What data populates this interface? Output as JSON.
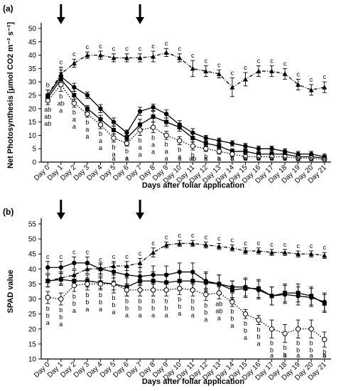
{
  "chart_data": [
    {
      "type": "line",
      "panel_label": "(a)",
      "xlabel": "Days after foliar application",
      "ylabel": "Net Photosynthesis [μmol CO2 m⁻² s⁻¹]",
      "ylim": [
        0,
        50
      ],
      "yticks": [
        0,
        5,
        10,
        15,
        20,
        25,
        30,
        35,
        40,
        45,
        50
      ],
      "categories": [
        "Day 0",
        "Day 1",
        "Day 2",
        "Day 3",
        "Day 4",
        "Day 5",
        "Day 6",
        "Day 7",
        "Day 8",
        "Day 9",
        "Day 10",
        "Day 11",
        "Day 12",
        "Day 13",
        "Day 14",
        "Day 15",
        "Day 16",
        "Day 17",
        "Day 18",
        "Day 19",
        "Day 20",
        "Day 21"
      ],
      "application_arrows": [
        "Day 1",
        "Day 7"
      ],
      "series": [
        {
          "marker": "triangle",
          "line": "dash-dot",
          "values": [
            25,
            33,
            37,
            40,
            40,
            39,
            39,
            39,
            39.5,
            41,
            39,
            35,
            34,
            33,
            28,
            31,
            34,
            34,
            33,
            29,
            27,
            28
          ],
          "errors": [
            2,
            2.5,
            1.5,
            1.2,
            1.5,
            1.5,
            1.5,
            1.5,
            2,
            1.5,
            1.5,
            3,
            2,
            1.5,
            3.5,
            2.5,
            2,
            2,
            2,
            2,
            2,
            2
          ]
        },
        {
          "marker": "circle-filled",
          "line": "solid",
          "values": [
            25,
            32,
            28,
            25,
            20,
            15,
            11,
            19,
            20.5,
            18,
            14,
            11,
            9,
            8,
            7,
            6,
            5,
            5,
            4,
            3,
            3,
            2
          ],
          "errors": [
            2,
            2.5,
            1.5,
            1.2,
            1.5,
            1.5,
            1,
            1.5,
            1.2,
            1.5,
            1.5,
            1.5,
            1,
            1,
            1,
            1,
            1,
            1,
            1,
            1,
            1,
            1
          ]
        },
        {
          "marker": "square",
          "line": "solid",
          "values": [
            24,
            31,
            25,
            20,
            16,
            12,
            9,
            14,
            17,
            15,
            13,
            9,
            7,
            6,
            4,
            4,
            3,
            3,
            3,
            2,
            2,
            1.5
          ],
          "errors": [
            1.5,
            2.5,
            1.5,
            1.2,
            1.5,
            1.5,
            1,
            2,
            2,
            1.5,
            1.5,
            1.5,
            1,
            1,
            1,
            1,
            1,
            1,
            1,
            1,
            1,
            1
          ]
        },
        {
          "marker": "circle-open",
          "line": "dotted",
          "values": [
            23,
            29,
            22,
            18,
            14,
            9,
            7,
            12,
            13,
            10,
            8,
            6,
            5,
            4,
            3,
            2,
            2,
            2,
            2,
            1.5,
            1.5,
            1
          ],
          "errors": [
            1.5,
            2.5,
            1.5,
            1.2,
            1.5,
            1.5,
            1,
            2,
            2,
            1.5,
            1.5,
            1.5,
            1,
            1,
            1,
            1,
            1,
            1,
            1,
            1,
            1,
            1
          ]
        }
      ],
      "significance_letters": [
        [
          "b",
          "ab",
          "ab",
          "ab"
        ],
        [
          "c",
          "b",
          "ab",
          "a"
        ],
        [
          "c",
          "b",
          "a",
          "a"
        ],
        [
          "c",
          "b",
          "a",
          "a"
        ],
        [
          "c",
          "b",
          "a",
          "a"
        ],
        [
          "c",
          "b",
          "a",
          "a"
        ],
        [
          "c",
          "b",
          "a",
          "a"
        ],
        [
          "c",
          "b",
          "a",
          "a"
        ],
        [
          "c",
          "b",
          "a",
          "a"
        ],
        [
          "c",
          "b",
          "a",
          "a"
        ],
        [
          "c",
          "b",
          "a",
          "a"
        ],
        [
          "c",
          "b",
          "ab",
          "a"
        ],
        [
          "c",
          "b",
          "a",
          "a"
        ],
        [
          "c",
          "b",
          "a",
          "a"
        ],
        [
          "c",
          "b",
          "a",
          "a"
        ],
        [
          "c",
          "b",
          "a",
          "a"
        ],
        [
          "c",
          "b",
          "a",
          "a"
        ],
        [
          "c",
          "b",
          "a",
          "a"
        ],
        [
          "c",
          "b",
          "a",
          "a"
        ],
        [
          "c",
          "b",
          "a",
          "a"
        ],
        [
          "c",
          "a",
          "a",
          "a"
        ],
        [
          "c",
          "a",
          "a",
          "a"
        ]
      ]
    },
    {
      "type": "line",
      "panel_label": "(b)",
      "xlabel": "Days after foliar application",
      "ylabel": "SPAD value",
      "ylim": [
        10,
        55
      ],
      "yticks": [
        10,
        15,
        20,
        25,
        30,
        35,
        40,
        45,
        50,
        55
      ],
      "categories": [
        "Day 0",
        "Day 1",
        "Day 2",
        "Day 3",
        "Day 4",
        "Day 5",
        "Day 6",
        "Day 7",
        "Day 8",
        "Day 9",
        "Day 10",
        "Day 11",
        "Day 12",
        "Day 13",
        "Day 14",
        "Day 15",
        "Day 16",
        "Day 17",
        "Day 18",
        "Day 19",
        "Day 20",
        "Day 21"
      ],
      "application_arrows": [
        "Day 1",
        "Day 7"
      ],
      "series": [
        {
          "marker": "triangle",
          "line": "dash-dot",
          "values": [
            36,
            37,
            38,
            40,
            40,
            41,
            41,
            42,
            45.5,
            48,
            48.5,
            48.5,
            48,
            47.5,
            47,
            46,
            46,
            45.5,
            45.5,
            45,
            45,
            44.5
          ],
          "errors": [
            2,
            2,
            1.5,
            1.5,
            1.5,
            1.5,
            1.5,
            1.5,
            1.5,
            1,
            1,
            1,
            1,
            1,
            1,
            1,
            1,
            1,
            1,
            1,
            1,
            1
          ]
        },
        {
          "marker": "circle-filled",
          "line": "solid",
          "values": [
            40.5,
            40.5,
            42,
            42,
            40,
            39,
            38,
            37.5,
            38,
            38,
            39,
            39,
            36,
            35,
            34,
            34,
            33,
            31,
            31.5,
            31,
            30.5,
            29
          ],
          "errors": [
            2,
            2,
            2,
            2,
            2,
            3,
            3,
            3,
            3,
            3,
            3,
            3,
            3,
            3,
            2,
            3,
            3,
            3,
            3,
            3,
            3,
            3
          ]
        },
        {
          "marker": "square",
          "line": "solid",
          "values": [
            36,
            36.5,
            36,
            36,
            35.5,
            35,
            34,
            36,
            36,
            35.5,
            36,
            36,
            35.5,
            35,
            33,
            33.5,
            33.5,
            31,
            32,
            32,
            31,
            28.5
          ],
          "errors": [
            2,
            2,
            2,
            2,
            2,
            3,
            3,
            3,
            3,
            3,
            3,
            3,
            3,
            3,
            3,
            3,
            3,
            3,
            3,
            3,
            3,
            3
          ]
        },
        {
          "marker": "circle-open",
          "line": "dotted",
          "values": [
            30.5,
            30,
            34.5,
            35,
            35,
            35,
            33,
            33,
            33,
            33,
            33.5,
            33,
            31.5,
            32,
            29,
            25,
            23,
            20,
            18.5,
            20,
            20,
            16.5
          ],
          "errors": [
            2,
            2,
            2,
            2,
            2,
            2,
            2,
            2,
            2,
            2,
            2,
            2,
            2,
            2,
            1.5,
            1.5,
            1.5,
            3,
            3,
            3,
            3,
            2.5
          ]
        }
      ],
      "significance_letters": [
        [
          "c",
          "b",
          "b",
          "a"
        ],
        [
          "c",
          "b",
          "b",
          "a"
        ],
        [
          "c",
          "b",
          "b",
          "a"
        ],
        [
          "c",
          "b",
          "b",
          "a"
        ],
        [
          "c",
          "b",
          "b",
          "a"
        ],
        [
          "c",
          "b",
          "b",
          "a"
        ],
        [
          "c",
          "b",
          "b",
          "a"
        ],
        [
          "c",
          "b",
          "b",
          "a"
        ],
        [
          "c",
          "b",
          "b",
          "a"
        ],
        [
          "c",
          "b",
          "b",
          "a"
        ],
        [
          "c",
          "b",
          "b",
          "a"
        ],
        [
          "c",
          "b",
          "b",
          "a"
        ],
        [
          "c",
          "b",
          "b",
          "a"
        ],
        [
          "c",
          "ab",
          "ab",
          "a"
        ],
        [
          "c",
          "b",
          "b",
          "a"
        ],
        [
          "c",
          "b",
          "b",
          "a"
        ],
        [
          "c",
          "b",
          "b",
          "a"
        ],
        [
          "c",
          "b",
          "b",
          "a"
        ],
        [
          "c",
          "b",
          "b",
          "a"
        ],
        [
          "c",
          "b",
          "b",
          "a"
        ],
        [
          "c",
          "b",
          "b",
          "a"
        ],
        [
          "c",
          "b",
          "b",
          "a"
        ]
      ]
    }
  ]
}
